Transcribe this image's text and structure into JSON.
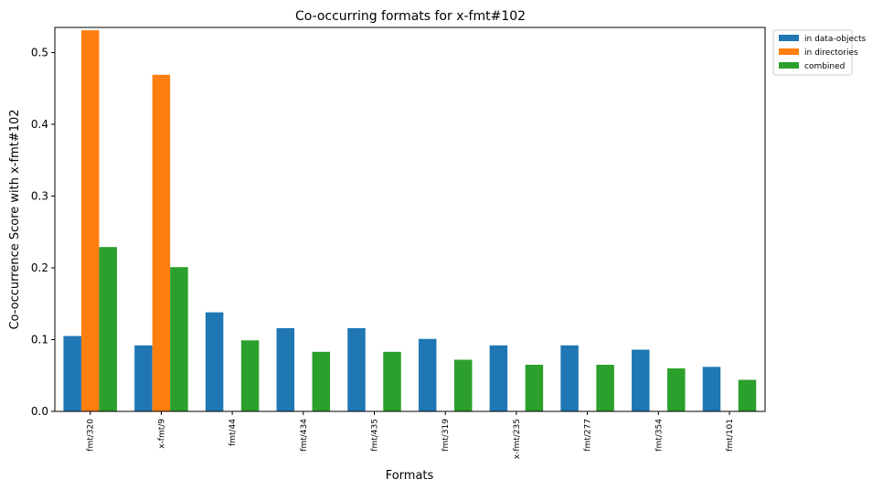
{
  "chart_data": {
    "type": "bar",
    "title": "Co-occurring formats for x-fmt#102",
    "xlabel": "Formats",
    "ylabel": "Co-occurrence Score with x-fmt#102",
    "categories": [
      "fmt/320",
      "x-fmt/9",
      "fmt/44",
      "fmt/434",
      "fmt/435",
      "fmt/319",
      "x-fmt/235",
      "fmt/277",
      "fmt/354",
      "fmt/101"
    ],
    "series": [
      {
        "name": "in data-objects",
        "color": "#1f77b4",
        "values": [
          0.105,
          0.092,
          0.138,
          0.116,
          0.116,
          0.101,
          0.092,
          0.092,
          0.086,
          0.062
        ]
      },
      {
        "name": "in directories",
        "color": "#ff7f0e",
        "values": [
          0.531,
          0.469,
          0,
          0,
          0,
          0,
          0,
          0,
          0,
          0
        ]
      },
      {
        "name": "combined",
        "color": "#2ca02c",
        "values": [
          0.229,
          0.201,
          0.099,
          0.083,
          0.083,
          0.072,
          0.065,
          0.065,
          0.06,
          0.044
        ]
      }
    ],
    "ylim": [
      0,
      0.535
    ],
    "yticks": [
      "0.0",
      "0.1",
      "0.2",
      "0.3",
      "0.4",
      "0.5"
    ],
    "legend": "outside-top-right",
    "grid": false
  }
}
